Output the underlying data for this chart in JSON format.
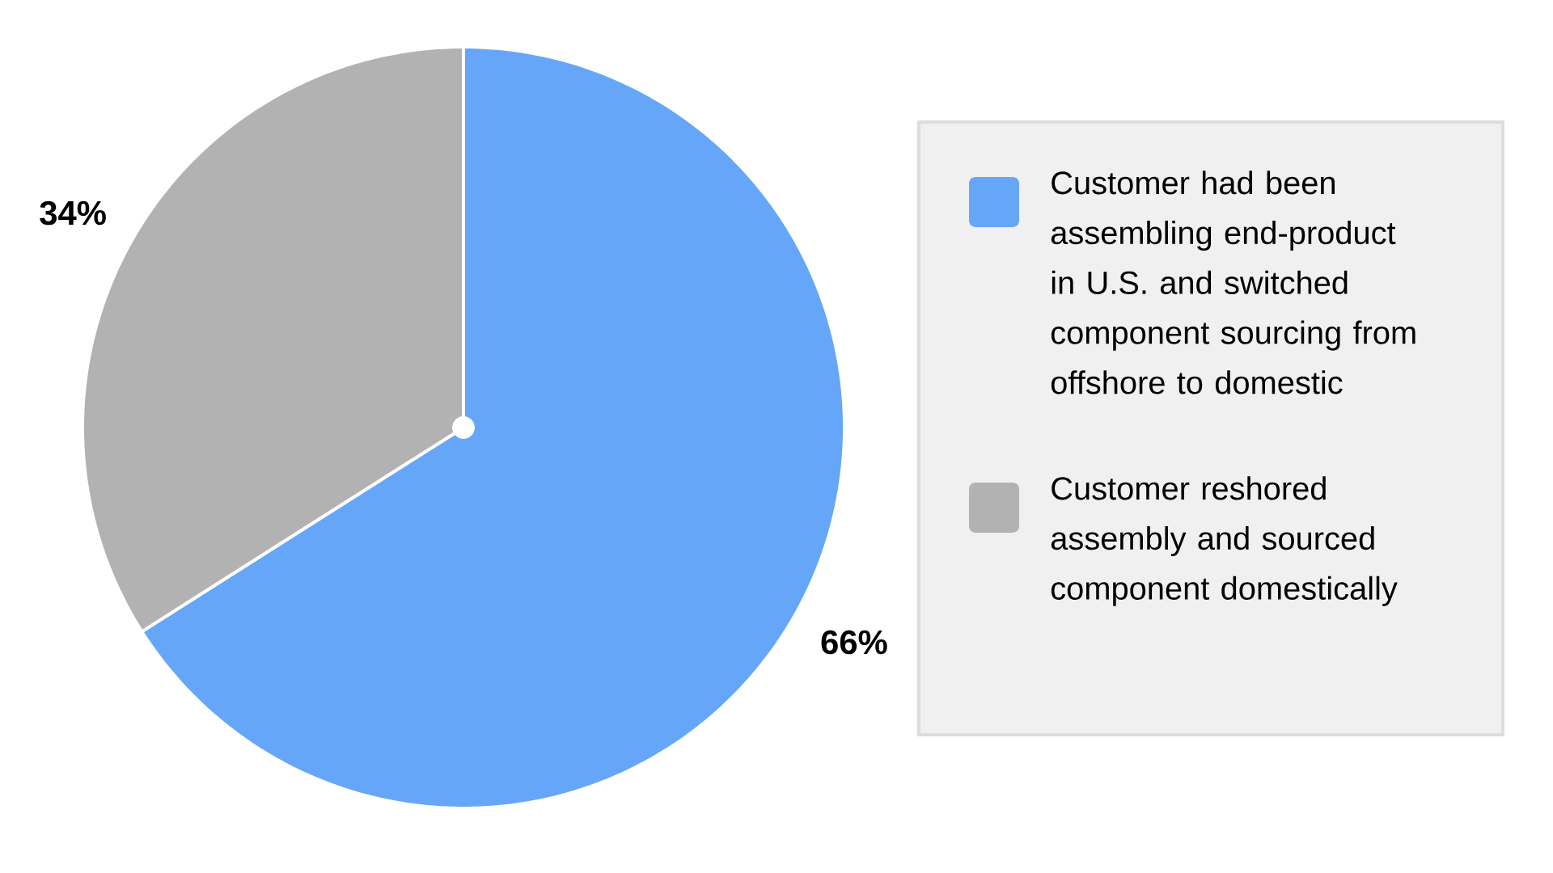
{
  "chart_data": {
    "type": "pie",
    "categories": [
      "Customer had been assembling end-product in U.S. and switched component sourcing from offshore to domestic",
      "Customer reshored assembly and sourced component domestically"
    ],
    "values": [
      66,
      34
    ],
    "colors": [
      "#66a6f8",
      "#b3b2b3"
    ],
    "value_labels": [
      "66%",
      "34%"
    ],
    "legend": "right"
  }
}
